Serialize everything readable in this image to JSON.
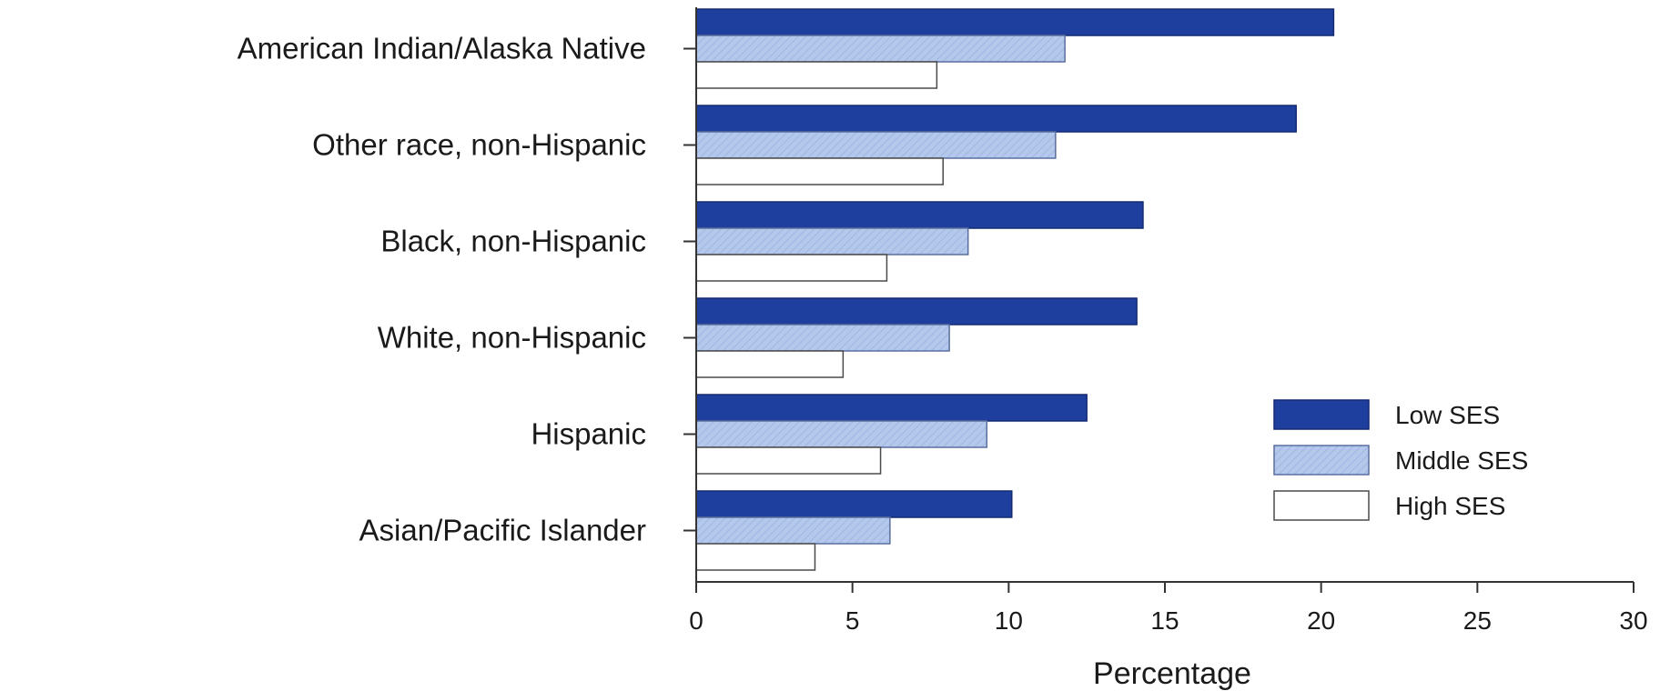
{
  "chart_data": {
    "type": "bar",
    "orientation": "horizontal",
    "categories": [
      "American Indian/Alaska Native",
      "Other race, non-Hispanic",
      "Black, non-Hispanic",
      "White, non-Hispanic",
      "Hispanic",
      "Asian/Pacific Islander"
    ],
    "series": [
      {
        "name": "Low SES",
        "color": "#1f3f9e",
        "values": [
          20.4,
          19.2,
          14.3,
          14.1,
          12.5,
          10.1
        ]
      },
      {
        "name": "Middle SES",
        "color": "#b4c8ec",
        "values": [
          11.8,
          11.5,
          8.7,
          8.1,
          9.3,
          6.2
        ]
      },
      {
        "name": "High SES",
        "color": "#ffffff",
        "values": [
          7.7,
          7.9,
          6.1,
          4.7,
          5.9,
          3.8
        ]
      }
    ],
    "xlabel": "Percentage",
    "ylabel": "",
    "xlim": [
      0,
      30
    ],
    "xticks": [
      0,
      5,
      10,
      15,
      20,
      25,
      30
    ],
    "grid": false,
    "legend_position": "right"
  }
}
